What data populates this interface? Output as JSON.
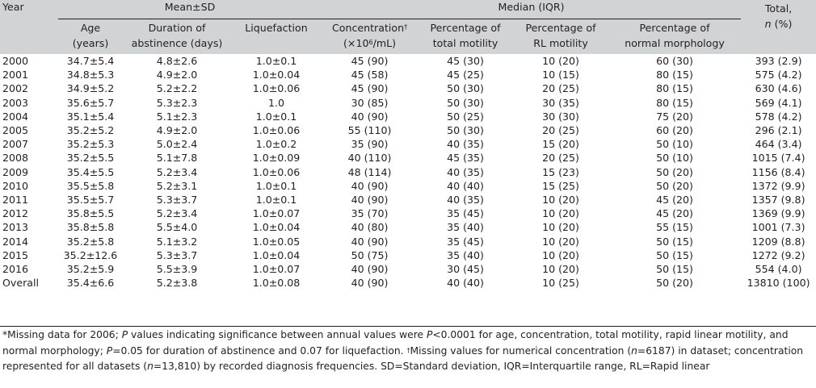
{
  "header": {
    "year": "Year",
    "mean_sd": "Mean±SD",
    "median_iqr": "Median (IQR)",
    "total_line1": "Total,",
    "total_line2_n": "n",
    "total_line2_rest": " (%)",
    "age_l1": "Age",
    "age_l2": "(years)",
    "abst_l1": "Duration of",
    "abst_l2": "abstinence (days)",
    "liq": "Liquefaction",
    "conc_l1": "Concentration",
    "conc_dagger": "†",
    "conc_l2a": "(×10",
    "conc_sup": "6",
    "conc_l2b": "/mL)",
    "tm_l1": "Percentage of",
    "tm_l2": "total motility",
    "rl_l1": "Percentage of",
    "rl_l2": "RL motility",
    "nm_l1": "Percentage of",
    "nm_l2": "normal morphology"
  },
  "rows": [
    {
      "year": "2000",
      "age": "34.7±5.4",
      "abst": "4.8±2.6",
      "liq": "1.0±0.1",
      "conc": "45 (90)",
      "tm": "45 (30)",
      "rl": "10 (20)",
      "nm": "60 (30)",
      "total": "393 (2.9)"
    },
    {
      "year": "2001",
      "age": "34.8±5.3",
      "abst": "4.9±2.0",
      "liq": "1.0±0.04",
      "conc": "45 (58)",
      "tm": "45 (25)",
      "rl": "10 (15)",
      "nm": "80 (15)",
      "total": "575 (4.2)"
    },
    {
      "year": "2002",
      "age": "34.9±5.2",
      "abst": "5.2±2.2",
      "liq": "1.0±0.06",
      "conc": "45 (90)",
      "tm": "50 (30)",
      "rl": "20 (25)",
      "nm": "80 (15)",
      "total": "630 (4.6)"
    },
    {
      "year": "2003",
      "age": "35.6±5.7",
      "abst": "5.3±2.3",
      "liq": "1.0",
      "conc": "30 (85)",
      "tm": "50 (30)",
      "rl": "30 (35)",
      "nm": "80 (15)",
      "total": "569 (4.1)"
    },
    {
      "year": "2004",
      "age": "35.1±5.4",
      "abst": "5.1±2.3",
      "liq": "1.0±0.1",
      "conc": "40 (90)",
      "tm": "50 (25)",
      "rl": "30 (30)",
      "nm": "75 (20)",
      "total": "578 (4.2)"
    },
    {
      "year": "2005",
      "age": "35.2±5.2",
      "abst": "4.9±2.0",
      "liq": "1.0±0.06",
      "conc": "55 (110)",
      "tm": "50 (30)",
      "rl": "20 (25)",
      "nm": "60 (20)",
      "total": "296 (2.1)"
    },
    {
      "year": "2007",
      "age": "35.2±5.3",
      "abst": "5.0±2.4",
      "liq": "1.0±0.2",
      "conc": "35 (90)",
      "tm": "40 (35)",
      "rl": "15 (20)",
      "nm": "50 (10)",
      "total": "464 (3.4)"
    },
    {
      "year": "2008",
      "age": "35.2±5.5",
      "abst": "5.1±7.8",
      "liq": "1.0±0.09",
      "conc": "40 (110)",
      "tm": "45 (35)",
      "rl": "20 (25)",
      "nm": "50 (10)",
      "total": "1015 (7.4)"
    },
    {
      "year": "2009",
      "age": "35.4±5.5",
      "abst": "5.2±3.4",
      "liq": "1.0±0.06",
      "conc": "48 (114)",
      "tm": "40 (35)",
      "rl": "15 (23)",
      "nm": "50 (20)",
      "total": "1156 (8.4)"
    },
    {
      "year": "2010",
      "age": "35.5±5.8",
      "abst": "5.2±3.1",
      "liq": "1.0±0.1",
      "conc": "40 (90)",
      "tm": "40 (40)",
      "rl": "15 (25)",
      "nm": "50 (20)",
      "total": "1372 (9.9)"
    },
    {
      "year": "2011",
      "age": "35.5±5.7",
      "abst": "5.3±3.7",
      "liq": "1.0±0.1",
      "conc": "40 (90)",
      "tm": "40 (35)",
      "rl": "10 (20)",
      "nm": "45 (20)",
      "total": "1357 (9.8)"
    },
    {
      "year": "2012",
      "age": "35.8±5.5",
      "abst": "5.2±3.4",
      "liq": "1.0±0.07",
      "conc": "35 (70)",
      "tm": "35 (45)",
      "rl": "10 (20)",
      "nm": "45 (20)",
      "total": "1369 (9.9)"
    },
    {
      "year": "2013",
      "age": "35.8±5.8",
      "abst": "5.5±4.0",
      "liq": "1.0±0.04",
      "conc": "40 (80)",
      "tm": "35 (40)",
      "rl": "10 (20)",
      "nm": "55 (15)",
      "total": "1001 (7.3)"
    },
    {
      "year": "2014",
      "age": "35.2±5.8",
      "abst": "5.1±3.2",
      "liq": "1.0±0.05",
      "conc": "40 (90)",
      "tm": "35 (45)",
      "rl": "10 (20)",
      "nm": "50 (15)",
      "total": "1209 (8.8)"
    },
    {
      "year": "2015",
      "age": "35.2±12.6",
      "abst": "5.3±3.7",
      "liq": "1.0±0.04",
      "conc": "50 (75)",
      "tm": "35 (40)",
      "rl": "10 (20)",
      "nm": "50 (15)",
      "total": "1272 (9.2)"
    },
    {
      "year": "2016",
      "age": "35.2±5.9",
      "abst": "5.5±3.9",
      "liq": "1.0±0.07",
      "conc": "40 (90)",
      "tm": "30 (45)",
      "rl": "10 (20)",
      "nm": "50 (15)",
      "total": "554 (4.0)"
    },
    {
      "year": "Overall",
      "age": "35.4±6.6",
      "abst": "5.2±3.8",
      "liq": "1.0±0.08",
      "conc": "40 (90)",
      "tm": "40 (40)",
      "rl": "10 (25)",
      "nm": "50 (20)",
      "total": "13810 (100)"
    }
  ],
  "footnote": {
    "p1": "*Missing data for 2006; ",
    "p_italic_1": "P",
    "p2": " values indicating significance between annual values were ",
    "p_italic_2": "P",
    "p3": "<0.0001 for age, concentration, total motility, rapid linear motility, and normal morphology; ",
    "p_italic_3": "P",
    "p4": "=0.05 for duration of abstinence and 0.07 for liquefaction. ",
    "dagger": "†",
    "p5": "Missing values for numerical concentration (",
    "n_italic_1": "n",
    "p6": "=6187) in dataset; concentration represented for all datasets (",
    "n_italic_2": "n",
    "p7": "=13,810) by recorded diagnosis frequencies. SD=Standard deviation, IQR=Interquartile range, RL=Rapid linear"
  }
}
